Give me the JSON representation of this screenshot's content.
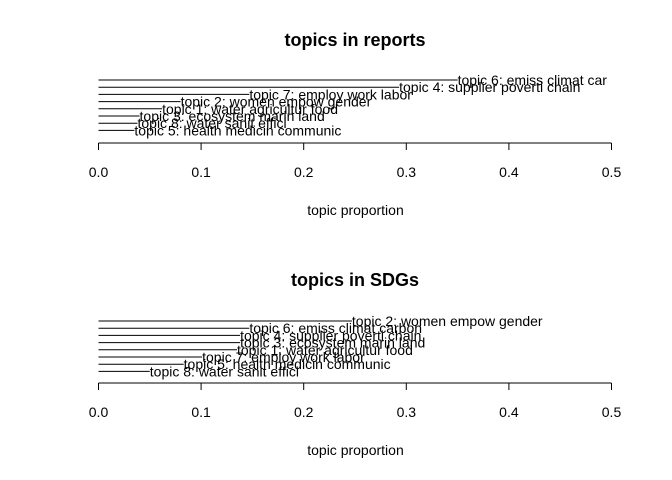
{
  "chart_data": [
    {
      "type": "bar",
      "orientation": "horizontal",
      "title": "topics in reports",
      "xlabel": "topic proportion",
      "ylabel": "",
      "xlim": [
        0,
        0.5
      ],
      "xticks": [
        "0.0",
        "0.1",
        "0.2",
        "0.3",
        "0.4",
        "0.5"
      ],
      "labels_position": "right-of-bar",
      "bars_top_to_bottom": [
        {
          "label": "topic 6: emiss climat car",
          "value": 0.35
        },
        {
          "label": "topic 4: supplier poverti chain",
          "value": 0.293
        },
        {
          "label": "topic 7: employ work labor",
          "value": 0.147
        },
        {
          "label": "topic 2: women empow gender",
          "value": 0.08
        },
        {
          "label": "topic 1: water agricultur food",
          "value": 0.062
        },
        {
          "label": "topic 3: ecosystem marin land",
          "value": 0.04
        },
        {
          "label": "topic 8: water sanit effici",
          "value": 0.038
        },
        {
          "label": "topic 5: health medicin communic",
          "value": 0.035
        }
      ]
    },
    {
      "type": "bar",
      "orientation": "horizontal",
      "title": "topics in SDGs",
      "xlabel": "topic proportion",
      "ylabel": "",
      "xlim": [
        0,
        0.5
      ],
      "xticks": [
        "0.0",
        "0.1",
        "0.2",
        "0.3",
        "0.4",
        "0.5"
      ],
      "labels_position": "right-of-bar",
      "bars_top_to_bottom": [
        {
          "label": "topic 2: women empow gender",
          "value": 0.247
        },
        {
          "label": "topic 6: emiss climat carbon",
          "value": 0.147
        },
        {
          "label": "topic 4: supplier poverti chain",
          "value": 0.138
        },
        {
          "label": "topic 3: ecosystem marin land",
          "value": 0.138
        },
        {
          "label": "topic 1: water agricultur food",
          "value": 0.135
        },
        {
          "label": "topic 7: employ work labor",
          "value": 0.101
        },
        {
          "label": "topic 5: health medicin communic",
          "value": 0.083
        },
        {
          "label": "topic 8: water sanit effici",
          "value": 0.05
        }
      ]
    }
  ]
}
